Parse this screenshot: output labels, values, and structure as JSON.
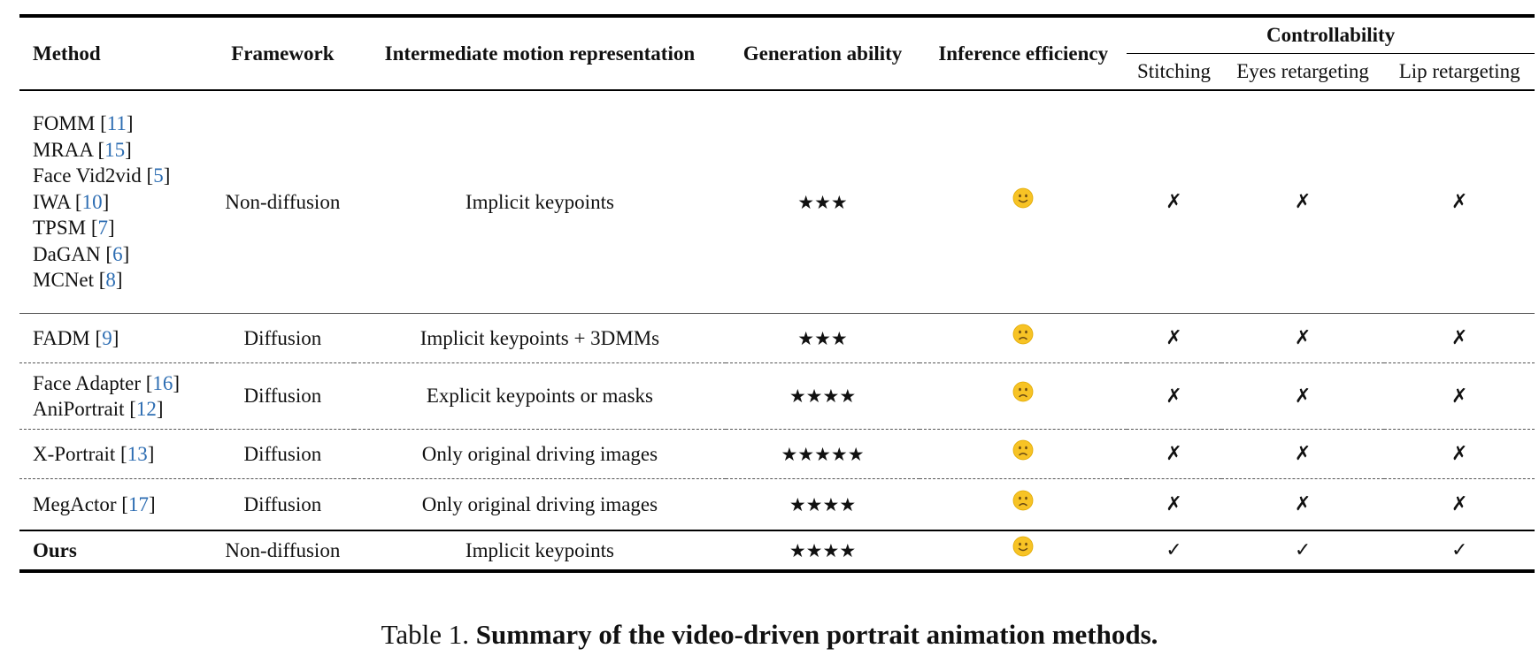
{
  "header": {
    "method": "Method",
    "framework": "Framework",
    "motion": "Intermediate motion representation",
    "generation": "Generation ability",
    "inference": "Inference efficiency",
    "controllability": "Controllability",
    "stitching": "Stitching",
    "eyes": "Eyes retargeting",
    "lip": "Lip retargeting"
  },
  "rows": [
    {
      "methods": [
        {
          "name": "FOMM",
          "cite": "11"
        },
        {
          "name": "MRAA",
          "cite": "15"
        },
        {
          "name": "Face Vid2vid",
          "cite": "5"
        },
        {
          "name": "IWA",
          "cite": "10"
        },
        {
          "name": "TPSM",
          "cite": "7"
        },
        {
          "name": "DaGAN",
          "cite": "6"
        },
        {
          "name": "MCNet",
          "cite": "8"
        }
      ],
      "framework": "Non-diffusion",
      "motion": "Implicit keypoints",
      "stars": "★★★",
      "efficiency": "slightly-smiling-face",
      "stitching": "✗",
      "eyes": "✗",
      "lip": "✗"
    },
    {
      "methods": [
        {
          "name": "FADM",
          "cite": "9"
        }
      ],
      "framework": "Diffusion",
      "motion": "Implicit keypoints + 3DMMs",
      "stars": "★★★",
      "efficiency": "slightly-frowning-face",
      "stitching": "✗",
      "eyes": "✗",
      "lip": "✗"
    },
    {
      "methods": [
        {
          "name": "Face Adapter",
          "cite": "16"
        },
        {
          "name": "AniPortrait",
          "cite": "12"
        }
      ],
      "framework": "Diffusion",
      "motion": "Explicit keypoints or masks",
      "stars": "★★★★",
      "efficiency": "slightly-frowning-face",
      "stitching": "✗",
      "eyes": "✗",
      "lip": "✗"
    },
    {
      "methods": [
        {
          "name": "X-Portrait",
          "cite": "13"
        }
      ],
      "framework": "Diffusion",
      "motion": "Only original driving images",
      "stars": "★★★★★",
      "efficiency": "slightly-frowning-face",
      "stitching": "✗",
      "eyes": "✗",
      "lip": "✗"
    },
    {
      "methods": [
        {
          "name": "MegActor",
          "cite": "17"
        }
      ],
      "framework": "Diffusion",
      "motion": "Only original driving images",
      "stars": "★★★★",
      "efficiency": "slightly-frowning-face",
      "stitching": "✗",
      "eyes": "✗",
      "lip": "✗"
    },
    {
      "methods": [
        {
          "name": "Ours"
        }
      ],
      "framework": "Non-diffusion",
      "motion": "Implicit keypoints",
      "stars": "★★★★",
      "efficiency": "slightly-smiling-face",
      "stitching": "✓",
      "eyes": "✓",
      "lip": "✓"
    }
  ],
  "caption": {
    "label": "Table 1.",
    "text": "Summary of the video-driven portrait animation methods."
  },
  "colors": {
    "cite": "#2d6db2",
    "emoji_face": "#f7c325",
    "emoji_feature": "#6b4a12"
  }
}
